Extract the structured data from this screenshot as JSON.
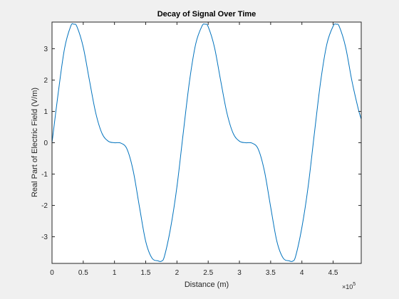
{
  "colors": {
    "figure_background": "#f0f0f0",
    "axes_background": "#ffffff",
    "axis_color": "#262626",
    "line_color": "#0072bd"
  },
  "chart_data": {
    "type": "line",
    "title": "Decay of Signal Over Time",
    "xlabel": "Distance (m)",
    "ylabel": "Real Part of Electric Field (V/m)",
    "x_exponent_base": "×10",
    "x_exponent_power": "5",
    "xlim": [
      0,
      49500
    ],
    "ylim": [
      -3.85,
      3.85
    ],
    "xticks": [
      0,
      5000,
      10000,
      15000,
      20000,
      25000,
      30000,
      35000,
      40000,
      45000
    ],
    "xtick_labels": [
      "0",
      "0.5",
      "1",
      "1.5",
      "2",
      "2.5",
      "3",
      "3.5",
      "4",
      "4.5"
    ],
    "yticks": [
      -3,
      -2,
      -1,
      0,
      1,
      2,
      3
    ],
    "ytick_labels": [
      "-3",
      "-2",
      "-1",
      "0",
      "1",
      "2",
      "3"
    ],
    "grid": false,
    "box": true,
    "series": [
      {
        "x": [
          0,
          1000,
          2000,
          3000,
          3500,
          4000,
          5000,
          6000,
          7000,
          8000,
          9000,
          10000,
          11000,
          12000,
          13000,
          14000,
          15000,
          16000,
          17000,
          17500,
          18000,
          19000,
          20000,
          21000,
          22000,
          23000,
          24000,
          24500,
          25000,
          26000,
          27000,
          28000,
          29000,
          30000,
          31000,
          32000,
          33000,
          34000,
          35000,
          36000,
          37000,
          38000,
          38500,
          39000,
          40000,
          41000,
          42000,
          43000,
          44000,
          45000,
          45500,
          46000,
          47000,
          48000,
          49000,
          49500
        ],
        "y": [
          0,
          1.6,
          3.0,
          3.72,
          3.78,
          3.7,
          3.05,
          1.98,
          0.95,
          0.3,
          0.05,
          0.0,
          -0.01,
          -0.2,
          -0.9,
          -2.05,
          -3.15,
          -3.68,
          -3.77,
          -3.78,
          -3.62,
          -2.7,
          -1.4,
          0.3,
          1.95,
          3.15,
          3.72,
          3.78,
          3.7,
          3.05,
          1.98,
          0.95,
          0.3,
          0.05,
          0.0,
          -0.01,
          -0.2,
          -0.9,
          -2.05,
          -3.15,
          -3.68,
          -3.77,
          -3.78,
          -3.62,
          -2.7,
          -1.4,
          0.3,
          1.95,
          3.15,
          3.72,
          3.78,
          3.7,
          3.05,
          1.98,
          1.1,
          0.75
        ]
      }
    ]
  }
}
